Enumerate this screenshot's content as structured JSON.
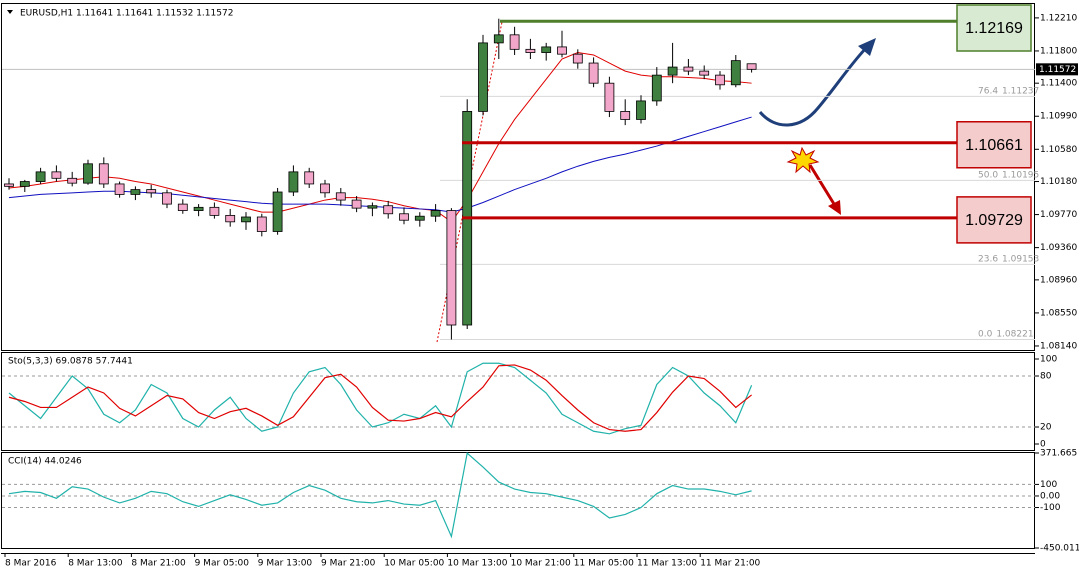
{
  "chart_data": [
    {
      "type": "candlestick",
      "title": "EURUSD,H1 1.11641 1.11641 1.11532 1.11572",
      "ylim": [
        1.0809,
        1.1237
      ],
      "yticks": [
        {
          "value": 1.1221,
          "label": "1.12210"
        },
        {
          "value": 1.118,
          "label": "1.11800"
        },
        {
          "value": 1.114,
          "label": "1.11400"
        },
        {
          "value": 1.1099,
          "label": "1.10990"
        },
        {
          "value": 1.1058,
          "label": "1.10580"
        },
        {
          "value": 1.1018,
          "label": "1.10180"
        },
        {
          "value": 1.0977,
          "label": "1.09770"
        },
        {
          "value": 1.0936,
          "label": "1.09360"
        },
        {
          "value": 1.0896,
          "label": "1.08960"
        },
        {
          "value": 1.0855,
          "label": "1.08550"
        },
        {
          "value": 1.0814,
          "label": "1.08140"
        }
      ],
      "xticks": [
        {
          "value": 0,
          "label": "8 Mar 2016"
        },
        {
          "value": 4,
          "label": "8 Mar 13:00"
        },
        {
          "value": 8,
          "label": "8 Mar 21:00"
        },
        {
          "value": 12,
          "label": "9 Mar 05:00"
        },
        {
          "value": 16,
          "label": "9 Mar 13:00"
        },
        {
          "value": 20,
          "label": "9 Mar 21:00"
        },
        {
          "value": 24,
          "label": "10 Mar 05:00"
        },
        {
          "value": 28,
          "label": "10 Mar 13:00"
        },
        {
          "value": 32,
          "label": "10 Mar 21:00"
        },
        {
          "value": 36,
          "label": "11 Mar 05:00"
        },
        {
          "value": 40,
          "label": "11 Mar 13:00"
        },
        {
          "value": 44,
          "label": "11 Mar 21:00"
        }
      ],
      "up_color": "#3f7f3f",
      "down_color": "#f2a6c9",
      "open": [
        1.1015,
        1.1012,
        1.1018,
        1.103,
        1.1022,
        1.1016,
        1.104,
        1.1015,
        1.1002,
        1.1008,
        1.1004,
        1.099,
        1.0982,
        1.0986,
        1.0976,
        1.0968,
        1.0974,
        1.0956,
        1.1005,
        1.103,
        1.1015,
        1.1004,
        1.0995,
        1.0985,
        1.0988,
        1.0978,
        1.097,
        1.0975,
        1.0982,
        1.084,
        1.1105,
        1.119,
        1.12,
        1.1182,
        1.1178,
        1.1185,
        1.1176,
        1.1165,
        1.114,
        1.1105,
        1.1095,
        1.1118,
        1.115,
        1.116,
        1.1155,
        1.115,
        1.1138,
        1.11641
      ],
      "high": [
        1.1022,
        1.102,
        1.1035,
        1.1038,
        1.103,
        1.1045,
        1.1048,
        1.1018,
        1.1012,
        1.1014,
        1.1008,
        1.0996,
        1.099,
        1.0992,
        1.0984,
        1.098,
        1.0978,
        1.101,
        1.1038,
        1.1035,
        1.102,
        1.101,
        1.1,
        1.0992,
        1.0994,
        1.0986,
        1.098,
        1.099,
        1.0985,
        1.112,
        1.12,
        1.122,
        1.121,
        1.1195,
        1.119,
        1.1205,
        1.1182,
        1.1172,
        1.1148,
        1.112,
        1.1125,
        1.116,
        1.119,
        1.117,
        1.1162,
        1.1155,
        1.1175,
        1.11641
      ],
      "low": [
        1.1008,
        1.1005,
        1.1015,
        1.1018,
        1.1012,
        1.1014,
        1.101,
        1.0998,
        1.0995,
        1.0998,
        1.0985,
        1.0978,
        1.0975,
        1.0972,
        1.0962,
        1.0958,
        1.095,
        1.0952,
        1.1,
        1.101,
        1.0998,
        1.0988,
        1.098,
        1.0975,
        1.0972,
        1.0965,
        1.0962,
        1.0968,
        1.0822,
        1.0835,
        1.11,
        1.117,
        1.1175,
        1.117,
        1.1168,
        1.1172,
        1.1158,
        1.1135,
        1.1098,
        1.1088,
        1.109,
        1.1112,
        1.114,
        1.115,
        1.1145,
        1.1132,
        1.1135,
        1.11532
      ],
      "close": [
        1.1012,
        1.1018,
        1.103,
        1.1022,
        1.1016,
        1.104,
        1.1015,
        1.1002,
        1.1008,
        1.1004,
        1.099,
        1.0982,
        1.0986,
        1.0976,
        1.0968,
        1.0974,
        1.0956,
        1.1005,
        1.103,
        1.1015,
        1.1004,
        1.0995,
        1.0985,
        1.0988,
        1.0978,
        1.097,
        1.0975,
        1.0982,
        1.084,
        1.1105,
        1.119,
        1.12,
        1.1182,
        1.1178,
        1.1185,
        1.1176,
        1.1165,
        1.114,
        1.1105,
        1.1095,
        1.1118,
        1.115,
        1.116,
        1.1155,
        1.115,
        1.1138,
        1.1168,
        1.11572
      ],
      "lines": [
        {
          "color": "#e00000",
          "values": [
            1.101,
            1.1012,
            1.1015,
            1.1018,
            1.102,
            1.1022,
            1.1024,
            1.1022,
            1.1018,
            1.1015,
            1.101,
            1.1005,
            1.1,
            1.0995,
            1.099,
            1.0985,
            1.098,
            1.098,
            1.0985,
            1.099,
            1.0995,
            1.0998,
            1.0998,
            1.0996,
            1.0993,
            1.0988,
            1.0984,
            1.0982,
            1.0968,
            1.0995,
            1.103,
            1.1065,
            1.1095,
            1.112,
            1.1145,
            1.117,
            1.1178,
            1.1175,
            1.1165,
            1.1155,
            1.115,
            1.1148,
            1.1148,
            1.1147,
            1.1146,
            1.1143,
            1.1142,
            1.114
          ]
        },
        {
          "color": "#1010c0",
          "values": [
            1.0998,
            1.1,
            1.1002,
            1.1003,
            1.1004,
            1.1005,
            1.1006,
            1.1006,
            1.1005,
            1.1004,
            1.1003,
            1.1001,
            1.0999,
            1.0997,
            1.0995,
            1.0993,
            1.0991,
            1.099,
            1.099,
            1.099,
            1.099,
            1.0989,
            1.0988,
            1.0987,
            1.0986,
            1.0985,
            1.0984,
            1.0983,
            1.098,
            1.0985,
            1.0992,
            1.1,
            1.1008,
            1.1015,
            1.1022,
            1.103,
            1.1037,
            1.1043,
            1.1048,
            1.1052,
            1.1057,
            1.1062,
            1.1068,
            1.1074,
            1.108,
            1.1086,
            1.1092,
            1.1098
          ]
        }
      ],
      "last_price": 1.11572,
      "levels": [
        {
          "value": 1.12169,
          "color": "#4f7f2a",
          "fill": "#d9ead3"
        },
        {
          "value": 1.10661,
          "color": "#c00000",
          "fill": "#f4cccc"
        },
        {
          "value": 1.09729,
          "color": "#c00000",
          "fill": "#f4cccc"
        }
      ],
      "fib": [
        {
          "level": 76.4,
          "price": 1.11237
        },
        {
          "level": {
            "value": 50,
            "label": "50.0"
          },
          "price": 1.10195
        },
        {
          "level": 23.6,
          "price": 1.09153
        },
        {
          "level": {
            "value": 0,
            "label": "0.0"
          },
          "price": 1.08221
        }
      ]
    },
    {
      "type": "line",
      "title": "Sto(5,3,3) 69.0878 57.7441",
      "ylim": [
        0,
        100
      ],
      "yticks": [
        100,
        80,
        20,
        0
      ],
      "lines": [
        {
          "color": "#20b2aa",
          "values": [
            60,
            45,
            30,
            55,
            80,
            65,
            35,
            25,
            40,
            70,
            60,
            30,
            20,
            40,
            55,
            30,
            15,
            20,
            60,
            85,
            90,
            70,
            40,
            20,
            25,
            35,
            30,
            45,
            20,
            85,
            95,
            95,
            90,
            75,
            60,
            35,
            25,
            15,
            12,
            18,
            22,
            70,
            90,
            80,
            60,
            45,
            25,
            69.0878
          ]
        },
        {
          "color": "#e00000",
          "values": [
            55,
            50,
            43,
            43,
            55,
            67,
            60,
            42,
            33,
            45,
            57,
            53,
            37,
            30,
            38,
            42,
            33,
            22,
            32,
            55,
            78,
            82,
            67,
            43,
            28,
            27,
            30,
            37,
            32,
            50,
            67,
            92,
            93,
            87,
            75,
            57,
            40,
            25,
            17,
            15,
            17,
            37,
            61,
            80,
            77,
            62,
            43,
            57.7441
          ]
        }
      ]
    },
    {
      "type": "line",
      "title": "CCI(14) 44.0246",
      "ylim": [
        -450.0119,
        371.665
      ],
      "yticks": [
        371.665,
        100,
        {
          "value": 0,
          "label": "0.00"
        },
        -100,
        -450.0119
      ],
      "lines": [
        {
          "color": "#20b2aa",
          "values": [
            20,
            40,
            30,
            -20,
            80,
            60,
            -10,
            -60,
            -20,
            40,
            20,
            -50,
            -90,
            -40,
            10,
            -30,
            -80,
            -60,
            30,
            90,
            50,
            -20,
            -50,
            -60,
            -40,
            -70,
            -80,
            -40,
            -350,
            370,
            250,
            120,
            60,
            30,
            20,
            -10,
            -40,
            -90,
            -190,
            -160,
            -100,
            20,
            90,
            60,
            60,
            40,
            10,
            44.0246
          ]
        }
      ]
    }
  ]
}
